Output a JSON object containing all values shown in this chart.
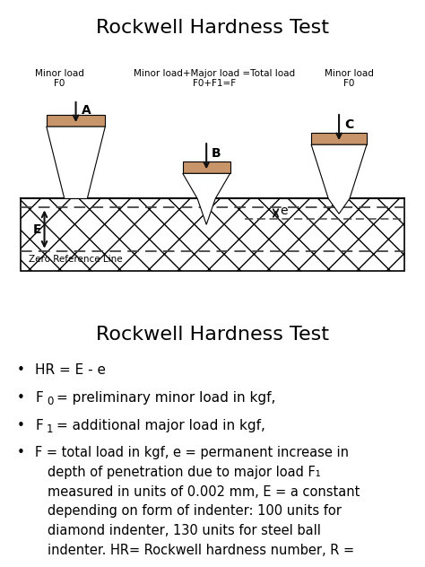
{
  "title1": "Rockwell Hardness Test",
  "title2": "Rockwell Hardness Test",
  "indenter_fill": "#c8956a",
  "dashed_line_color": "#444444",
  "arrow_color": "#111111",
  "diagram_bg": "#e0e0e0",
  "minor_load_text_A": "Minor load\nF0",
  "minor_load_text_B": "Minor load+Major load =Total load\nF0+F1=F",
  "minor_load_text_C": "Minor load\nF0",
  "zero_ref_text": "Zero Reference Line",
  "label_A": "A",
  "label_B": "B",
  "label_C": "C",
  "label_E": "E",
  "label_e": "e",
  "font_size_title": 16,
  "font_size_small": 7.5,
  "font_size_label": 10,
  "font_size_bullet": 11
}
